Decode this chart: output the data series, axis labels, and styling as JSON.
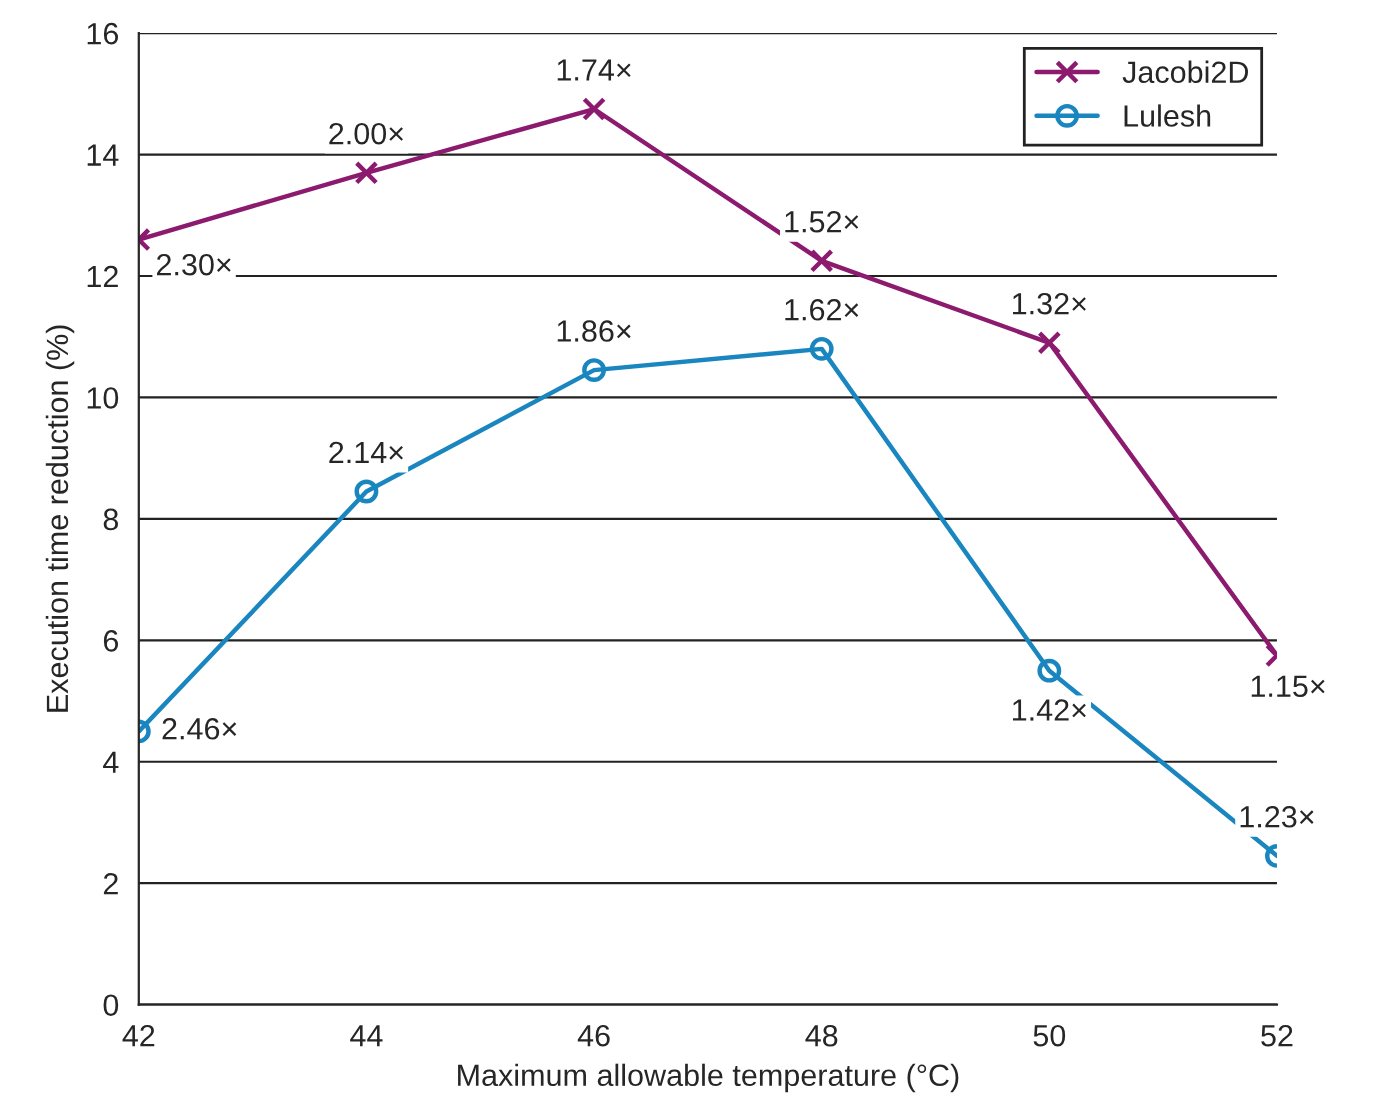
{
  "chart_data": {
    "type": "line",
    "xlabel": "Maximum allowable temperature (°C)",
    "ylabel": "Execution time reduction (%)",
    "x": [
      42,
      44,
      46,
      48,
      50,
      52
    ],
    "series": [
      {
        "name": "Jacobi2D",
        "color": "#8c1a6e",
        "marker": "cross",
        "values": [
          12.6,
          13.7,
          14.75,
          12.25,
          10.9,
          5.75
        ]
      },
      {
        "name": "Lulesh",
        "color": "#1a86c0",
        "marker": "circle",
        "values": [
          4.5,
          8.45,
          10.45,
          10.8,
          5.5,
          2.45
        ]
      }
    ],
    "annotations": [
      {
        "text": "2.30×",
        "x": 42,
        "y": 12.6
      },
      {
        "text": "2.00×",
        "x": 44,
        "y": 13.7
      },
      {
        "text": "1.74×",
        "x": 46,
        "y": 14.75
      },
      {
        "text": "1.52×",
        "x": 48,
        "y": 12.25
      },
      {
        "text": "1.32×",
        "x": 50,
        "y": 10.9
      },
      {
        "text": "1.15×",
        "x": 52,
        "y": 5.75
      },
      {
        "text": "2.46×",
        "x": 42,
        "y": 4.5
      },
      {
        "text": "2.14×",
        "x": 44,
        "y": 8.45
      },
      {
        "text": "1.86×",
        "x": 46,
        "y": 10.45
      },
      {
        "text": "1.62×",
        "x": 48,
        "y": 10.8
      },
      {
        "text": "1.42×",
        "x": 50,
        "y": 5.5
      },
      {
        "text": "1.23×",
        "x": 52,
        "y": 2.45
      }
    ],
    "xlim": [
      42,
      52
    ],
    "xticks": [
      42,
      44,
      46,
      48,
      50,
      52
    ],
    "ylim": [
      0,
      16
    ],
    "yticks": [
      0,
      2,
      4,
      6,
      8,
      10,
      12,
      14,
      16
    ],
    "grid": "y",
    "legend": "top right",
    "line_style": "solid"
  }
}
